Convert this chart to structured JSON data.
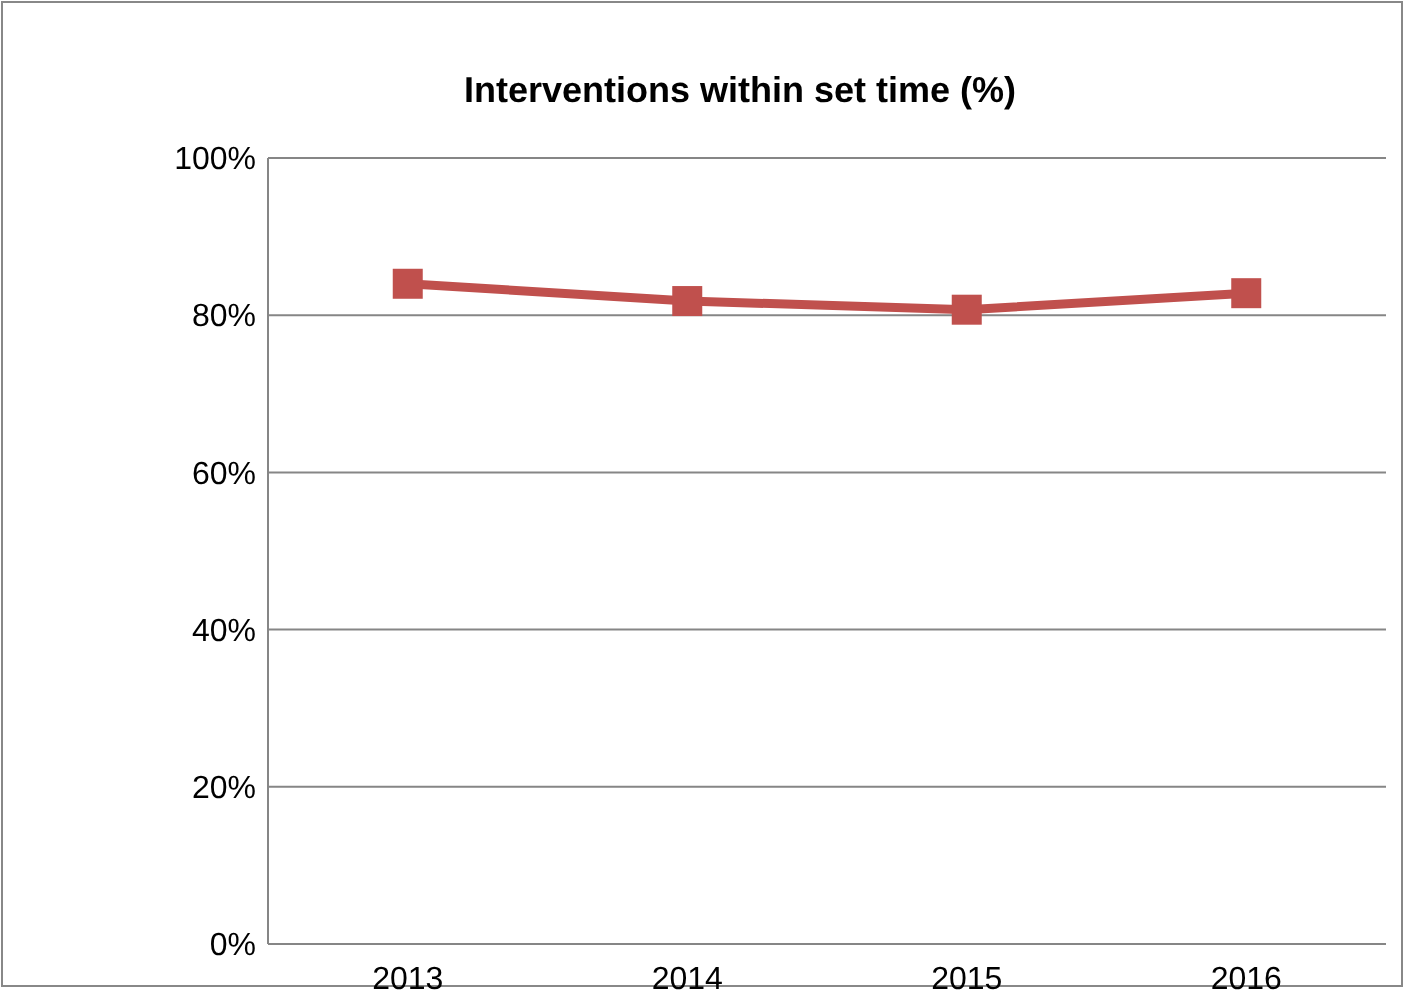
{
  "chart_data": {
    "type": "line",
    "title": "Interventions within set time (%)",
    "categories": [
      "2013",
      "2014",
      "2015",
      "2016"
    ],
    "series": [
      {
        "color": "#c0504d",
        "values": [
          84,
          81.8,
          80.7,
          82.8
        ]
      }
    ],
    "ylim": [
      0,
      100
    ],
    "yticks": [
      {
        "value": 0,
        "label": "0%"
      },
      {
        "value": 20,
        "label": "20%"
      },
      {
        "value": 40,
        "label": "40%"
      },
      {
        "value": 60,
        "label": "60%"
      },
      {
        "value": 80,
        "label": "80%"
      },
      {
        "value": 100,
        "label": "100%"
      }
    ],
    "grid": "y",
    "marker": "square"
  }
}
